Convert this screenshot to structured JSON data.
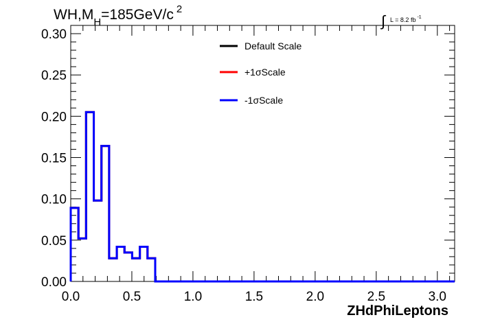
{
  "chart_data": {
    "type": "line",
    "title": {
      "main": "WH,M",
      "subscript": "H",
      "rest": "=185GeV/c",
      "superscript": "2"
    },
    "lumi": {
      "symbol": "∫",
      "text": "L = 8.2 fb",
      "superscript": "-1"
    },
    "xlabel": "ZHdPhiLeptons",
    "ylabel": "",
    "xlim": [
      0,
      3.1416
    ],
    "ylim": [
      0,
      0.31
    ],
    "x_ticks": [
      "0.0",
      "0.5",
      "1.0",
      "1.5",
      "2.0",
      "2.5",
      "3.0"
    ],
    "x_tick_values": [
      0,
      0.5,
      1.0,
      1.5,
      2.0,
      2.5,
      3.0
    ],
    "y_ticks": [
      "0.00",
      "0.05",
      "0.10",
      "0.15",
      "0.20",
      "0.25",
      "0.30"
    ],
    "y_tick_values": [
      0,
      0.05,
      0.1,
      0.15,
      0.2,
      0.25,
      0.3
    ],
    "bin_edges": [
      0,
      0.0628,
      0.1257,
      0.1885,
      0.2513,
      0.3142,
      0.377,
      0.4398,
      0.5027,
      0.5655,
      0.6283,
      0.6912,
      3.1416
    ],
    "series": [
      {
        "name": "Default Scale",
        "color": "#000000",
        "values": [
          0.089,
          0.052,
          0.205,
          0.098,
          0.164,
          0.028,
          0.042,
          0.035,
          0.028,
          0.042,
          0.028,
          0.0
        ]
      },
      {
        "name": "+1σScale",
        "color": "#ff0000",
        "values": [
          0.089,
          0.052,
          0.205,
          0.098,
          0.164,
          0.028,
          0.042,
          0.035,
          0.028,
          0.042,
          0.028,
          0.0
        ]
      },
      {
        "name": "-1σScale",
        "color": "#0000ff",
        "values": [
          0.089,
          0.052,
          0.205,
          0.098,
          0.164,
          0.028,
          0.042,
          0.035,
          0.028,
          0.042,
          0.028,
          0.0
        ]
      }
    ],
    "legend_position": "top-center",
    "grid": false
  }
}
